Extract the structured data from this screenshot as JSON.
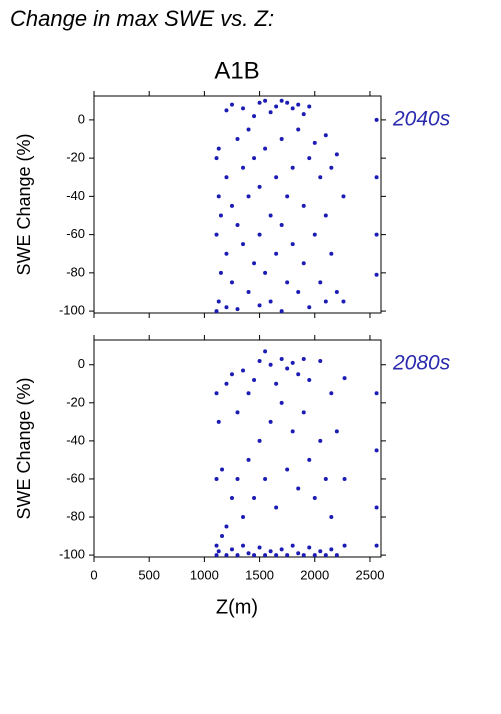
{
  "title": "Change in max SWE vs. Z:",
  "scenario": "A1B",
  "x_label": "Z(m)",
  "chart_data": [
    {
      "type": "scatter",
      "label": "2040s",
      "y_label": "SWE Change (%)",
      "show_xtick_labels": false,
      "xlim": [
        0,
        2600
      ],
      "ylim": [
        -101,
        12.5
      ],
      "xticks": [
        0,
        500,
        1000,
        1500,
        2000,
        2500
      ],
      "yticks": [
        -100,
        -80,
        -60,
        -40,
        -20,
        0
      ],
      "series": [
        {
          "color": "#1c1cb4",
          "x": [
            1110,
            1110,
            1110,
            1130,
            1130,
            1130,
            1150,
            1150,
            1200,
            1200,
            1200,
            1200,
            1250,
            1250,
            1250,
            1300,
            1300,
            1300,
            1350,
            1350,
            1350,
            1400,
            1400,
            1400,
            1450,
            1450,
            1450,
            1500,
            1500,
            1500,
            1500,
            1550,
            1550,
            1550,
            1600,
            1600,
            1600,
            1650,
            1650,
            1650,
            1700,
            1700,
            1700,
            1700,
            1750,
            1750,
            1750,
            1800,
            1800,
            1800,
            1850,
            1850,
            1850,
            1900,
            1900,
            1900,
            1950,
            1950,
            1950,
            2000,
            2000,
            2050,
            2050,
            2100,
            2100,
            2100,
            2150,
            2150,
            2200,
            2200,
            2260,
            2260,
            2560,
            2560,
            2560,
            2560
          ],
          "y": [
            -100,
            -60,
            -20,
            -95,
            -40,
            -15,
            -80,
            -50,
            5,
            -30,
            -70,
            -98,
            8,
            -45,
            -85,
            -10,
            -55,
            -99,
            6,
            -25,
            -65,
            -5,
            -40,
            -90,
            2,
            -20,
            -75,
            9,
            -35,
            -60,
            -97,
            10,
            -15,
            -80,
            4,
            -50,
            -95,
            7,
            -30,
            -70,
            10,
            -10,
            -55,
            -100,
            9,
            -40,
            -85,
            6,
            -25,
            -65,
            8,
            -5,
            -90,
            3,
            -45,
            -75,
            7,
            -20,
            -98,
            -12,
            -60,
            -30,
            -85,
            -8,
            -50,
            -95,
            -25,
            -70,
            -18,
            -90,
            -40,
            -95,
            0,
            -30,
            -60,
            -81
          ]
        }
      ]
    },
    {
      "type": "scatter",
      "label": "2080s",
      "y_label": "SWE Change (%)",
      "show_xtick_labels": true,
      "xlim": [
        0,
        2600
      ],
      "ylim": [
        -101,
        13
      ],
      "xticks": [
        0,
        500,
        1000,
        1500,
        2000,
        2500
      ],
      "yticks": [
        -100,
        -80,
        -60,
        -40,
        -20,
        0
      ],
      "series": [
        {
          "color": "#1c1cb4",
          "x": [
            1110,
            1110,
            1110,
            1110,
            1130,
            1130,
            1160,
            1160,
            1200,
            1200,
            1200,
            1250,
            1250,
            1250,
            1300,
            1300,
            1300,
            1350,
            1350,
            1350,
            1400,
            1400,
            1400,
            1450,
            1450,
            1450,
            1500,
            1500,
            1500,
            1550,
            1550,
            1550,
            1600,
            1600,
            1600,
            1650,
            1650,
            1650,
            1700,
            1700,
            1700,
            1750,
            1750,
            1750,
            1800,
            1800,
            1800,
            1850,
            1850,
            1850,
            1900,
            1900,
            1900,
            1950,
            1950,
            1950,
            2000,
            2000,
            2050,
            2050,
            2050,
            2100,
            2100,
            2150,
            2150,
            2150,
            2200,
            2200,
            2270,
            2270,
            2270,
            2560,
            2560,
            2560,
            2560
          ],
          "y": [
            -100,
            -95,
            -60,
            -15,
            -98,
            -30,
            -90,
            -55,
            -100,
            -85,
            -10,
            -97,
            -70,
            -5,
            -100,
            -60,
            -25,
            -95,
            -80,
            -3,
            -99,
            -50,
            -15,
            -100,
            -70,
            -8,
            -96,
            -40,
            2,
            -100,
            -60,
            7,
            -98,
            -30,
            0,
            -100,
            -75,
            -10,
            -97,
            -20,
            3,
            -100,
            -55,
            -2,
            -95,
            -35,
            1,
            -99,
            -65,
            -5,
            -100,
            -25,
            3,
            -96,
            -50,
            -8,
            -100,
            -70,
            -98,
            -40,
            2,
            -100,
            -60,
            -97,
            -80,
            -15,
            -100,
            -35,
            -95,
            -60,
            -7,
            -15,
            -45,
            -75,
            -95
          ]
        }
      ]
    }
  ]
}
